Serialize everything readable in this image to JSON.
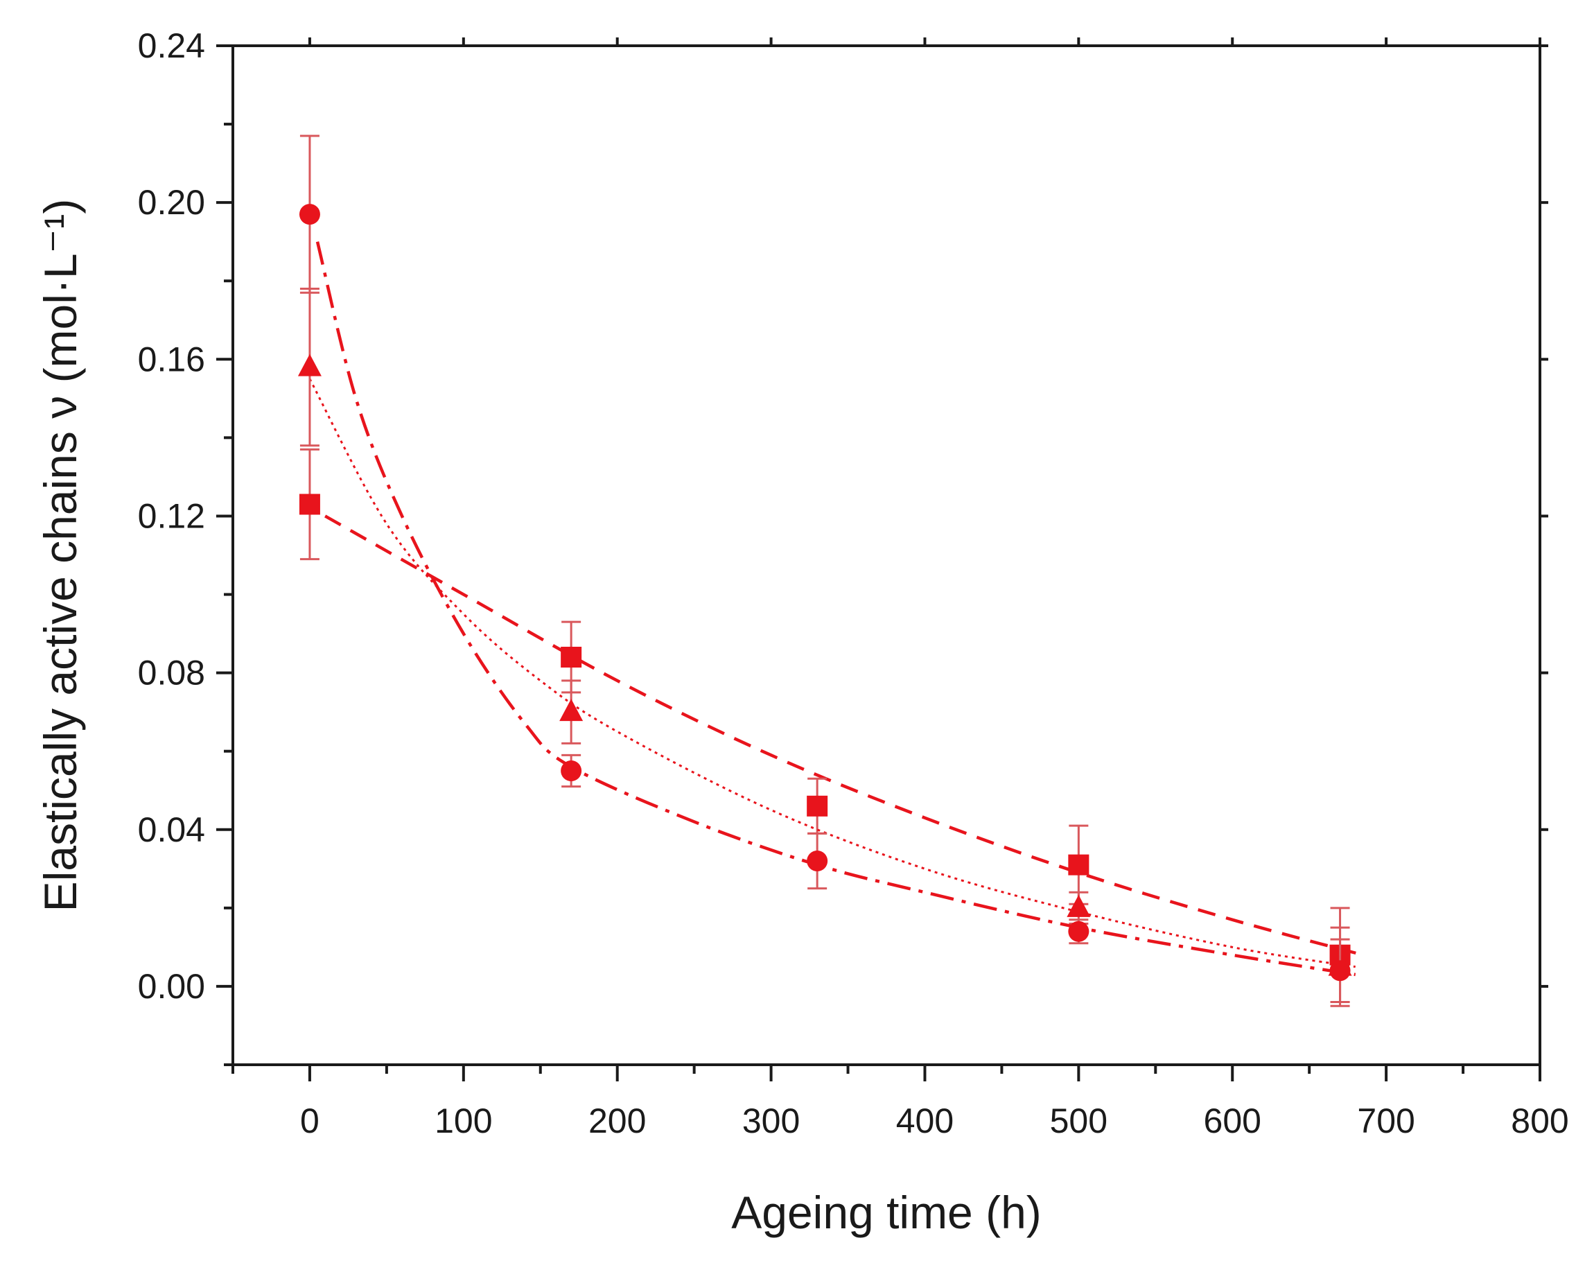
{
  "chart_data": {
    "type": "scatter",
    "title": "",
    "xlabel": "Ageing time (h)",
    "ylabel": "Elastically active chains ν (mol·L⁻¹)",
    "xlim": [
      -50,
      800
    ],
    "ylim": [
      -0.02,
      0.24
    ],
    "x_ticks": [
      "0",
      "100",
      "200",
      "300",
      "400",
      "500",
      "600",
      "700",
      "800"
    ],
    "y_ticks": [
      "0.00",
      "0.04",
      "0.08",
      "0.12",
      "0.16",
      "0.20",
      "0.24"
    ],
    "x_tick_values": [
      0,
      100,
      200,
      300,
      400,
      500,
      600,
      700,
      800
    ],
    "y_tick_values": [
      0.0,
      0.04,
      0.08,
      0.12,
      0.16,
      0.2,
      0.24
    ],
    "x_minor_step": 50,
    "y_minor_step": 0.02,
    "grid": false,
    "color": "#e8141c",
    "series": [
      {
        "name": "square",
        "marker": "square",
        "line_style": "dash",
        "x": [
          0,
          170,
          330,
          500,
          670
        ],
        "y": [
          0.123,
          0.084,
          0.046,
          0.031,
          0.008
        ],
        "err": [
          0.014,
          0.009,
          0.007,
          0.01,
          0.012
        ],
        "fit": {
          "x": [
            10,
            100,
            200,
            300,
            400,
            500,
            600,
            685
          ],
          "y": [
            0.12,
            0.1,
            0.078,
            0.059,
            0.043,
            0.029,
            0.017,
            0.008
          ]
        }
      },
      {
        "name": "triangle",
        "marker": "triangle",
        "line_style": "dot",
        "x": [
          0,
          170,
          500,
          670
        ],
        "y": [
          0.158,
          0.07,
          0.02,
          0.005
        ],
        "err": [
          0.02,
          0.008,
          0.004,
          0.01
        ],
        "fit": {
          "x": [
            0,
            50,
            100,
            150,
            200,
            300,
            400,
            500,
            600,
            680
          ],
          "y": [
            0.155,
            0.118,
            0.095,
            0.078,
            0.065,
            0.045,
            0.03,
            0.019,
            0.01,
            0.005
          ]
        }
      },
      {
        "name": "circle",
        "marker": "circle",
        "line_style": "dashdot",
        "x": [
          0,
          170,
          330,
          500,
          670
        ],
        "y": [
          0.197,
          0.055,
          0.032,
          0.014,
          0.004
        ],
        "err": [
          0.02,
          0.004,
          0.007,
          0.003,
          0.008
        ],
        "fit": {
          "x": [
            5,
            30,
            60,
            100,
            140,
            170,
            250,
            330,
            400,
            500,
            600,
            680
          ],
          "y": [
            0.19,
            0.15,
            0.12,
            0.09,
            0.067,
            0.056,
            0.042,
            0.031,
            0.024,
            0.015,
            0.008,
            0.003
          ]
        }
      }
    ]
  }
}
